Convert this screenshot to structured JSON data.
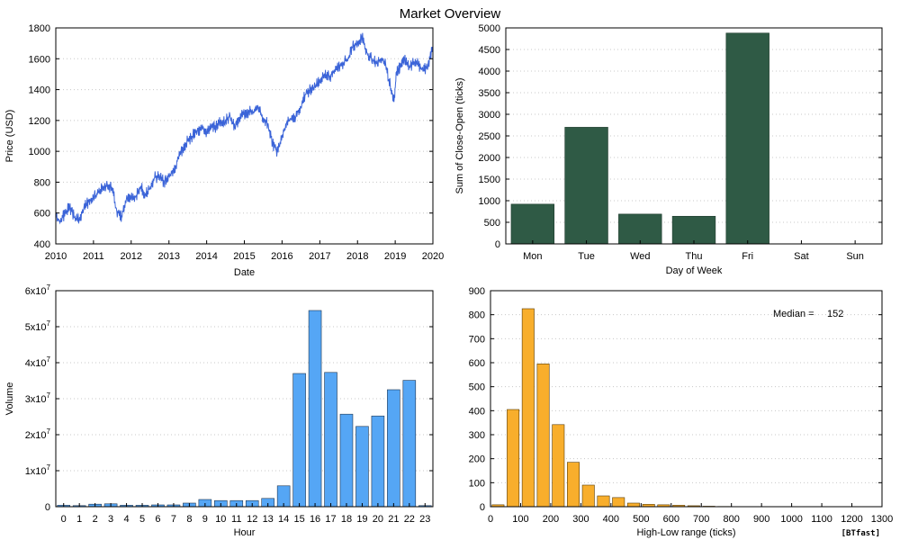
{
  "figure": {
    "title": "Market Overview",
    "watermark": "[BTfast]",
    "colors": {
      "line": "#3b64d8",
      "weekday_bar": "#2f5a45",
      "hour_bar": "#55a6f5",
      "hist_bar": "#f8ae2c",
      "grid": "#c8c8c8"
    }
  },
  "chart_data": [
    {
      "id": "price",
      "type": "line",
      "title": "",
      "xlabel": "Date",
      "ylabel": "Price (USD)",
      "xlim": [
        "2010-01-01",
        "2020-01-01"
      ],
      "ylim": [
        400,
        1800
      ],
      "x_ticks": [
        "2010",
        "2011",
        "2012",
        "2013",
        "2014",
        "2015",
        "2016",
        "2017",
        "2018",
        "2019",
        "2020"
      ],
      "y_ticks": [
        "400",
        "600",
        "800",
        "1000",
        "1200",
        "1400",
        "1600",
        "1800"
      ],
      "grid": "horizontal dotted",
      "series": [
        {
          "x": [
            "2010-01-01",
            "2010-02-15",
            "2010-04-01",
            "2010-05-15",
            "2010-07-01",
            "2010-08-15",
            "2010-10-01",
            "2010-11-15",
            "2011-01-01",
            "2011-02-15",
            "2011-04-01",
            "2011-05-15",
            "2011-07-01",
            "2011-08-15",
            "2011-10-01",
            "2011-11-15",
            "2012-01-01",
            "2012-02-15",
            "2012-04-01",
            "2012-05-15",
            "2012-07-01",
            "2012-08-15",
            "2012-10-01",
            "2012-11-15",
            "2013-01-01",
            "2013-02-15",
            "2013-04-01",
            "2013-05-15",
            "2013-07-01",
            "2013-08-15",
            "2013-10-01",
            "2013-11-15",
            "2014-01-01",
            "2014-02-15",
            "2014-04-01",
            "2014-05-15",
            "2014-07-01",
            "2014-08-15",
            "2014-10-01",
            "2014-11-15",
            "2015-01-01",
            "2015-02-15",
            "2015-04-01",
            "2015-05-15",
            "2015-07-01",
            "2015-08-15",
            "2015-10-01",
            "2015-11-15",
            "2016-01-01",
            "2016-02-15",
            "2016-04-01",
            "2016-05-15",
            "2016-07-01",
            "2016-08-15",
            "2016-10-01",
            "2016-11-15",
            "2017-01-01",
            "2017-02-15",
            "2017-04-01",
            "2017-05-15",
            "2017-07-01",
            "2017-08-15",
            "2017-10-01",
            "2017-11-15",
            "2018-01-01",
            "2018-02-15",
            "2018-04-01",
            "2018-05-15",
            "2018-07-01",
            "2018-08-15",
            "2018-10-01",
            "2018-11-15",
            "2018-12-20",
            "2019-01-15",
            "2019-02-15",
            "2019-04-01",
            "2019-05-15",
            "2019-07-01",
            "2019-08-15",
            "2019-10-01",
            "2019-11-15",
            "2020-01-01"
          ],
          "y": [
            570,
            545,
            600,
            640,
            570,
            555,
            640,
            670,
            700,
            730,
            770,
            780,
            760,
            610,
            580,
            690,
            700,
            710,
            770,
            720,
            760,
            830,
            840,
            800,
            840,
            880,
            950,
            1020,
            1070,
            1100,
            1130,
            1150,
            1120,
            1160,
            1160,
            1190,
            1200,
            1230,
            1150,
            1220,
            1240,
            1260,
            1250,
            1280,
            1220,
            1180,
            1050,
            1000,
            1100,
            1190,
            1210,
            1230,
            1290,
            1370,
            1400,
            1420,
            1450,
            1500,
            1480,
            1520,
            1550,
            1570,
            1600,
            1680,
            1700,
            1740,
            1640,
            1600,
            1580,
            1600,
            1560,
            1420,
            1320,
            1520,
            1540,
            1600,
            1540,
            1580,
            1560,
            1520,
            1560,
            1670
          ]
        }
      ]
    },
    {
      "id": "weekday",
      "type": "bar",
      "title": "",
      "xlabel": "Day of Week",
      "ylabel": "Sum of Close-Open (ticks)",
      "ylim": [
        0,
        5000
      ],
      "y_ticks": [
        "0",
        "500",
        "1000",
        "1500",
        "2000",
        "2500",
        "3000",
        "3500",
        "4000",
        "4500",
        "5000"
      ],
      "grid": "horizontal dotted",
      "categories": [
        "Mon",
        "Tue",
        "Wed",
        "Thu",
        "Fri",
        "Sat",
        "Sun"
      ],
      "values": [
        920,
        2700,
        690,
        640,
        4880,
        0,
        0
      ]
    },
    {
      "id": "hourly",
      "type": "bar",
      "title": "",
      "xlabel": "Hour",
      "ylabel": "Volume",
      "ylim": [
        0,
        60000000
      ],
      "y_ticks": [
        {
          "base": "0",
          "exp": ""
        },
        {
          "base": "1x10",
          "exp": "7"
        },
        {
          "base": "2x10",
          "exp": "7"
        },
        {
          "base": "3x10",
          "exp": "7"
        },
        {
          "base": "4x10",
          "exp": "7"
        },
        {
          "base": "5x10",
          "exp": "7"
        },
        {
          "base": "6x10",
          "exp": "7"
        }
      ],
      "grid": "horizontal dotted",
      "categories": [
        "0",
        "1",
        "2",
        "3",
        "4",
        "5",
        "6",
        "7",
        "8",
        "9",
        "10",
        "11",
        "12",
        "13",
        "14",
        "15",
        "16",
        "17",
        "18",
        "19",
        "20",
        "21",
        "22",
        "23"
      ],
      "values": [
        400000,
        300000,
        700000,
        800000,
        400000,
        400000,
        500000,
        500000,
        1000000,
        2000000,
        1700000,
        1700000,
        1700000,
        2300000,
        5800000,
        37000000,
        54500000,
        37300000,
        25700000,
        22300000,
        25200000,
        32500000,
        35100000,
        300000
      ]
    },
    {
      "id": "range_hist",
      "type": "bar",
      "title": "",
      "xlabel": "High-Low range (ticks)",
      "ylabel": "",
      "xlim": [
        0,
        1300
      ],
      "ylim": [
        0,
        900
      ],
      "x_ticks": [
        "0",
        "100",
        "200",
        "300",
        "400",
        "500",
        "600",
        "700",
        "800",
        "900",
        "1000",
        "1100",
        "1200",
        "1300"
      ],
      "y_ticks": [
        "0",
        "100",
        "200",
        "300",
        "400",
        "500",
        "600",
        "700",
        "800",
        "900"
      ],
      "grid": "horizontal dotted",
      "bin_width": 50,
      "bin_centers": [
        25,
        75,
        125,
        175,
        225,
        275,
        325,
        375,
        425,
        475,
        525,
        575,
        625,
        675,
        725,
        775
      ],
      "values": [
        8,
        405,
        825,
        595,
        342,
        185,
        90,
        45,
        38,
        15,
        10,
        8,
        6,
        4,
        2,
        1
      ],
      "annotation": {
        "label": "Median =",
        "value": "152"
      }
    }
  ]
}
